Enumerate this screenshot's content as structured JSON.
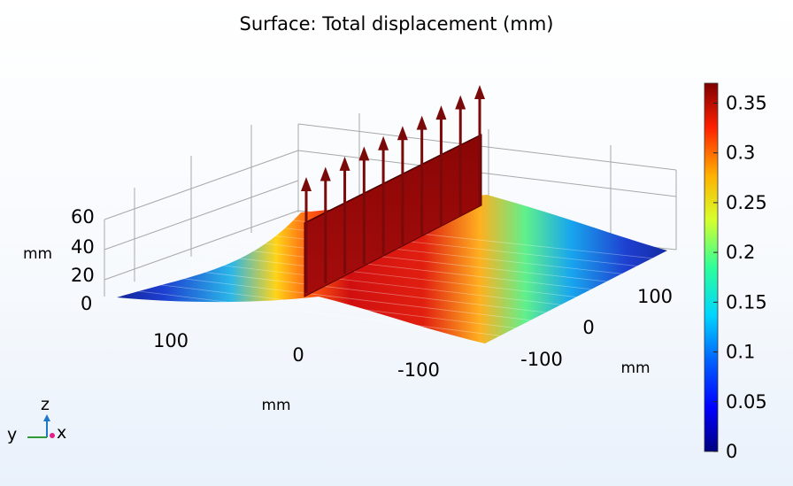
{
  "chart_data": {
    "type": "surface",
    "title": "Surface: Total displacement (mm)",
    "z_axis": {
      "unit": "mm",
      "ticks": [
        "0",
        "20",
        "40",
        "60"
      ]
    },
    "x_axis": {
      "unit": "mm",
      "ticks": [
        "100",
        "0",
        "-100"
      ]
    },
    "y_axis": {
      "unit": "mm",
      "ticks": [
        "-100",
        "0",
        "100"
      ]
    },
    "colorbar": {
      "colormap": "rainbow",
      "range": [
        0,
        0.37
      ],
      "ticks": [
        "0",
        "0.05",
        "0.1",
        "0.15",
        "0.2",
        "0.25",
        "0.3",
        "0.35"
      ],
      "tick_values": [
        0,
        0.05,
        0.1,
        0.15,
        0.2,
        0.25,
        0.3,
        0.35
      ]
    },
    "grid": true,
    "features": {
      "load_arrows": 10,
      "load_arrow_color": "#7a0a0a",
      "plate_color": "#b00f0f"
    }
  },
  "triad": {
    "z": "z",
    "y": "y",
    "x": "x"
  }
}
